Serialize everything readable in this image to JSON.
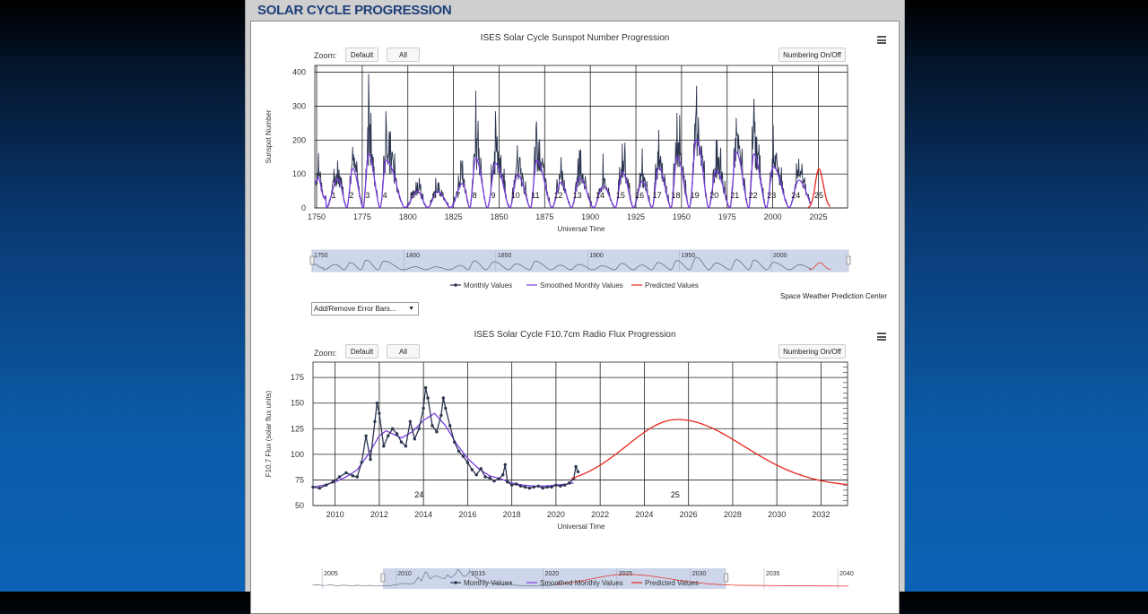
{
  "page": {
    "title": "SOLAR CYCLE PROGRESSION"
  },
  "controls": {
    "zoom_label": "Zoom:",
    "default_label": "Default",
    "all_label": "All",
    "numbering_label": "Numbering On/Off",
    "error_bars_label": "Add/Remove Error Bars..."
  },
  "credit": "Space Weather Prediction Center",
  "colors": {
    "monthly": "#2b3550",
    "smoothed": "#7b3fe0",
    "predicted": "#e8261c",
    "navigator_fill": "#cdd6ea"
  },
  "chart_data": [
    {
      "type": "line",
      "title": "ISES Solar Cycle Sunspot Number Progression",
      "xlabel": "Universal Time",
      "ylabel": "Sunspot Number",
      "xlim": [
        1749,
        2041
      ],
      "ylim": [
        0,
        420
      ],
      "x_ticks": [
        1750,
        1775,
        1800,
        1825,
        1850,
        1875,
        1900,
        1925,
        1950,
        1975,
        2000,
        2025
      ],
      "y_ticks": [
        0,
        100,
        200,
        300,
        400
      ],
      "grid": true,
      "legend": {
        "placement": "bottom-center",
        "entries": [
          "Monthly Values",
          "Smoothed Monthly Values",
          "Predicted Values"
        ]
      },
      "navigator_ticks": [
        1750,
        1800,
        1850,
        1900,
        1950,
        2000
      ],
      "cycle_labels": [
        "1",
        "2",
        "3",
        "4",
        "5",
        "6",
        "7",
        "8",
        "9",
        "10",
        "11",
        "12",
        "13",
        "14",
        "15",
        "16",
        "17",
        "18",
        "19",
        "20",
        "21",
        "22",
        "23",
        "24",
        "25"
      ],
      "cycles": [
        {
          "cycle": 1,
          "min": 1755.2,
          "max": 1761.5,
          "peak": 86
        },
        {
          "cycle": 2,
          "min": 1766.5,
          "max": 1769.7,
          "peak": 116
        },
        {
          "cycle": 3,
          "min": 1775.5,
          "max": 1778.4,
          "peak": 158
        },
        {
          "cycle": 4,
          "min": 1784.7,
          "max": 1788.1,
          "peak": 141
        },
        {
          "cycle": 5,
          "min": 1798.3,
          "max": 1805.2,
          "peak": 49
        },
        {
          "cycle": 6,
          "min": 1810.6,
          "max": 1816.4,
          "peak": 48
        },
        {
          "cycle": 7,
          "min": 1823.3,
          "max": 1829.9,
          "peak": 72
        },
        {
          "cycle": 8,
          "min": 1833.9,
          "max": 1837.2,
          "peak": 147
        },
        {
          "cycle": 9,
          "min": 1843.5,
          "max": 1848.1,
          "peak": 131
        },
        {
          "cycle": 10,
          "min": 1855.9,
          "max": 1860.1,
          "peak": 98
        },
        {
          "cycle": 11,
          "min": 1867.2,
          "max": 1870.6,
          "peak": 140
        },
        {
          "cycle": 12,
          "min": 1878.9,
          "max": 1883.9,
          "peak": 75
        },
        {
          "cycle": 13,
          "min": 1889.6,
          "max": 1894.1,
          "peak": 88
        },
        {
          "cycle": 14,
          "min": 1901.7,
          "max": 1907.0,
          "peak": 64
        },
        {
          "cycle": 15,
          "min": 1913.6,
          "max": 1917.6,
          "peak": 105
        },
        {
          "cycle": 16,
          "min": 1923.6,
          "max": 1928.4,
          "peak": 78
        },
        {
          "cycle": 17,
          "min": 1933.8,
          "max": 1937.4,
          "peak": 119
        },
        {
          "cycle": 18,
          "min": 1944.2,
          "max": 1947.5,
          "peak": 151
        },
        {
          "cycle": 19,
          "min": 1954.3,
          "max": 1958.2,
          "peak": 201
        },
        {
          "cycle": 20,
          "min": 1964.9,
          "max": 1968.9,
          "peak": 111
        },
        {
          "cycle": 21,
          "min": 1976.5,
          "max": 1979.9,
          "peak": 165
        },
        {
          "cycle": 22,
          "min": 1986.8,
          "max": 1989.6,
          "peak": 159
        },
        {
          "cycle": 23,
          "min": 1996.4,
          "max": 2000.3,
          "peak": 121
        },
        {
          "cycle": 24,
          "min": 2008.9,
          "max": 2014.3,
          "peak": 82
        }
      ],
      "monthly_peaks": [
        {
          "x": 1761.5,
          "y": 140
        },
        {
          "x": 1769.7,
          "y": 180
        },
        {
          "x": 1778.4,
          "y": 395
        },
        {
          "x": 1788.1,
          "y": 285
        },
        {
          "x": 1805.2,
          "y": 75
        },
        {
          "x": 1816.4,
          "y": 75
        },
        {
          "x": 1829.9,
          "y": 140
        },
        {
          "x": 1837.2,
          "y": 345
        },
        {
          "x": 1848.1,
          "y": 285
        },
        {
          "x": 1860.1,
          "y": 185
        },
        {
          "x": 1870.6,
          "y": 255
        },
        {
          "x": 1883.9,
          "y": 150
        },
        {
          "x": 1894.1,
          "y": 170
        },
        {
          "x": 1907.0,
          "y": 160
        },
        {
          "x": 1917.6,
          "y": 190
        },
        {
          "x": 1928.4,
          "y": 175
        },
        {
          "x": 1937.4,
          "y": 230
        },
        {
          "x": 1947.5,
          "y": 280
        },
        {
          "x": 1958.2,
          "y": 360
        },
        {
          "x": 1968.9,
          "y": 200
        },
        {
          "x": 1979.9,
          "y": 265
        },
        {
          "x": 1989.6,
          "y": 260
        },
        {
          "x": 2000.3,
          "y": 245
        },
        {
          "x": 2014.3,
          "y": 145
        }
      ],
      "predicted": {
        "start": 2019.5,
        "peak_x": 2025.3,
        "peak_y": 115,
        "end": 2031.5
      }
    },
    {
      "type": "line",
      "title": "ISES Solar Cycle F10.7cm Radio Flux Progression",
      "xlabel": "Universal Time",
      "ylabel": "F10.7 Flux (solar flux units)",
      "xlim": [
        2009.0,
        2033.2
      ],
      "ylim": [
        50,
        190
      ],
      "x_ticks": [
        2010,
        2012,
        2014,
        2016,
        2018,
        2020,
        2022,
        2024,
        2026,
        2028,
        2030,
        2032
      ],
      "y_ticks": [
        50,
        75,
        100,
        125,
        150,
        175
      ],
      "grid": true,
      "legend": {
        "placement": "bottom-center",
        "entries": [
          "Monthly Values",
          "Smoothed Monthly Values",
          "Predicted Values"
        ]
      },
      "navigator_ticks": [
        2005,
        2010,
        2015,
        2020,
        2025,
        2030,
        2035,
        2040
      ],
      "cycle_labels": [
        {
          "label": "24",
          "x": 2013.8
        },
        {
          "label": "25",
          "x": 2025.4
        }
      ],
      "monthly": [
        [
          2009.0,
          68
        ],
        [
          2009.3,
          67
        ],
        [
          2009.6,
          70
        ],
        [
          2009.9,
          73
        ],
        [
          2010.2,
          78
        ],
        [
          2010.5,
          82
        ],
        [
          2010.8,
          79
        ],
        [
          2011.0,
          78
        ],
        [
          2011.2,
          92
        ],
        [
          2011.4,
          118
        ],
        [
          2011.6,
          95
        ],
        [
          2011.8,
          132
        ],
        [
          2011.9,
          150
        ],
        [
          2012.0,
          140
        ],
        [
          2012.2,
          108
        ],
        [
          2012.4,
          118
        ],
        [
          2012.6,
          125
        ],
        [
          2012.8,
          120
        ],
        [
          2013.0,
          112
        ],
        [
          2013.2,
          108
        ],
        [
          2013.4,
          132
        ],
        [
          2013.6,
          115
        ],
        [
          2013.8,
          125
        ],
        [
          2014.0,
          145
        ],
        [
          2014.1,
          165
        ],
        [
          2014.2,
          155
        ],
        [
          2014.4,
          128
        ],
        [
          2014.6,
          122
        ],
        [
          2014.8,
          138
        ],
        [
          2014.9,
          155
        ],
        [
          2015.0,
          145
        ],
        [
          2015.2,
          128
        ],
        [
          2015.4,
          112
        ],
        [
          2015.6,
          103
        ],
        [
          2015.8,
          98
        ],
        [
          2016.0,
          92
        ],
        [
          2016.2,
          85
        ],
        [
          2016.4,
          80
        ],
        [
          2016.6,
          86
        ],
        [
          2016.8,
          78
        ],
        [
          2017.0,
          77
        ],
        [
          2017.2,
          74
        ],
        [
          2017.4,
          76
        ],
        [
          2017.6,
          80
        ],
        [
          2017.7,
          90
        ],
        [
          2017.8,
          73
        ],
        [
          2018.0,
          70
        ],
        [
          2018.2,
          71
        ],
        [
          2018.4,
          69
        ],
        [
          2018.6,
          68
        ],
        [
          2018.8,
          67
        ],
        [
          2019.0,
          68
        ],
        [
          2019.2,
          69
        ],
        [
          2019.4,
          67
        ],
        [
          2019.6,
          68
        ],
        [
          2019.8,
          68
        ],
        [
          2020.0,
          70
        ],
        [
          2020.2,
          69
        ],
        [
          2020.4,
          70
        ],
        [
          2020.6,
          72
        ],
        [
          2020.8,
          76
        ],
        [
          2020.9,
          88
        ],
        [
          2021.0,
          83
        ]
      ],
      "smoothed": [
        [
          2009.0,
          68
        ],
        [
          2009.5,
          70
        ],
        [
          2010.0,
          73
        ],
        [
          2010.5,
          78
        ],
        [
          2011.0,
          85
        ],
        [
          2011.5,
          100
        ],
        [
          2012.0,
          118
        ],
        [
          2012.3,
          123
        ],
        [
          2012.6,
          120
        ],
        [
          2013.0,
          116
        ],
        [
          2013.5,
          122
        ],
        [
          2014.0,
          133
        ],
        [
          2014.5,
          140
        ],
        [
          2015.0,
          128
        ],
        [
          2015.5,
          110
        ],
        [
          2016.0,
          96
        ],
        [
          2016.5,
          86
        ],
        [
          2017.0,
          79
        ],
        [
          2017.5,
          76
        ],
        [
          2018.0,
          72
        ],
        [
          2018.5,
          70
        ],
        [
          2019.0,
          69
        ],
        [
          2019.5,
          69
        ],
        [
          2020.0,
          70
        ],
        [
          2020.5,
          71
        ],
        [
          2020.8,
          72
        ]
      ],
      "predicted": {
        "start": 2020.7,
        "start_y": 69,
        "peak_x": 2025.5,
        "peak_y": 134,
        "end": 2033.2,
        "end_y": 68
      },
      "navigator_range": {
        "start": 2009.0,
        "end": 2032.3
      }
    }
  ]
}
